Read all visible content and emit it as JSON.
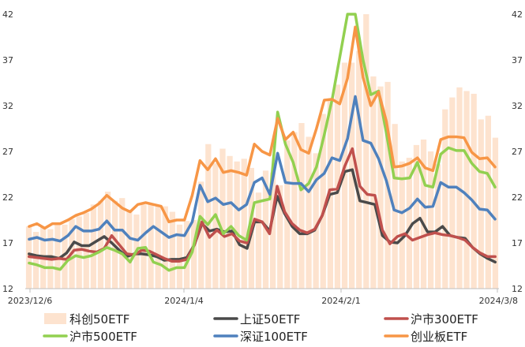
{
  "chart_data": {
    "type": "line",
    "y_ticks": [
      12,
      17,
      22,
      27,
      32,
      37,
      42
    ],
    "ylim": [
      12,
      42
    ],
    "x_tick_labels": [
      "2023/12/6",
      "2024/1/4",
      "2024/2/1",
      "2024/3/8"
    ],
    "grid": false,
    "legend_position": "bottom",
    "bar_series": {
      "name": "科创50ETF",
      "color": "#fde3cf",
      "values": [
        18.8,
        18.2,
        18.8,
        18.5,
        19.2,
        19.0,
        19.6,
        19.9,
        20.3,
        21.2,
        21.6,
        22.6,
        21.6,
        21.9,
        20.6,
        20.1,
        21.2,
        21.2,
        21.1,
        21.0,
        20.4,
        19.0,
        19.4,
        19.5,
        23.7,
        27.8,
        25.7,
        27.3,
        26.5,
        25.9,
        26.2,
        25.2,
        22.5,
        24.9,
        24.7,
        23.3,
        28.2,
        29.1,
        30.1,
        28.6,
        26.8,
        31.1,
        32.6,
        34.3,
        36.7,
        36.7,
        38.0,
        42.0,
        35.2,
        34.1,
        34.6,
        30.0,
        25.9,
        26.3,
        27.7,
        28.3,
        27.0,
        25.6,
        31.6,
        32.9,
        34.0,
        33.6,
        33.3,
        30.5,
        30.9,
        28.5
      ]
    },
    "series": [
      {
        "name": "上证50ETF",
        "color": "#4a4a4a",
        "values": [
          15.8,
          15.6,
          15.5,
          15.5,
          15.3,
          15.9,
          17.1,
          16.7,
          16.7,
          17.2,
          17.7,
          17.0,
          16.2,
          15.5,
          15.8,
          15.8,
          15.7,
          15.5,
          15.1,
          15.2,
          15.2,
          15.4,
          16.8,
          19.1,
          18.3,
          18.5,
          18.2,
          18.3,
          16.8,
          16.4,
          19.3,
          19.3,
          18.3,
          22.1,
          20.2,
          18.8,
          18.0,
          18.0,
          18.4,
          20.0,
          22.3,
          22.5,
          24.8,
          25.0,
          21.6,
          21.4,
          21.2,
          17.8,
          17.1,
          17.0,
          17.8,
          19.1,
          19.7,
          18.2,
          18.2,
          18.8,
          17.8,
          17.6,
          17.5,
          16.5,
          15.8,
          15.3,
          14.9
        ]
      },
      {
        "name": "沪市300ETF",
        "color": "#c0504d",
        "values": [
          15.5,
          15.4,
          15.3,
          15.2,
          15.3,
          15.2,
          16.2,
          16.3,
          16.1,
          16.0,
          16.4,
          17.8,
          16.8,
          15.8,
          15.7,
          16.2,
          16.1,
          15.7,
          15.3,
          15.0,
          15.0,
          15.2,
          16.8,
          19.3,
          17.6,
          18.4,
          17.7,
          18.0,
          17.2,
          17.0,
          19.6,
          19.3,
          18.0,
          23.2,
          20.4,
          19.1,
          18.4,
          18.1,
          18.5,
          20.0,
          22.8,
          22.9,
          25.4,
          27.3,
          23.2,
          22.3,
          22.2,
          18.4,
          16.9,
          17.7,
          18.0,
          17.3,
          17.6,
          17.9,
          18.1,
          17.9,
          17.8,
          17.6,
          17.3,
          16.5,
          15.9,
          15.5,
          15.5
        ]
      },
      {
        "name": "沪市500ETF",
        "color": "#92d050",
        "values": [
          14.8,
          14.6,
          14.3,
          14.3,
          14.1,
          15.1,
          15.6,
          15.4,
          15.6,
          16.0,
          16.5,
          16.2,
          15.8,
          14.9,
          16.4,
          16.5,
          14.9,
          14.6,
          14.0,
          14.3,
          14.3,
          16.0,
          19.9,
          19.0,
          20.1,
          18.0,
          18.8,
          17.8,
          17.3,
          21.4,
          21.6,
          21.8,
          31.3,
          27.8,
          25.8,
          22.8,
          23.5,
          25.3,
          28.8,
          32.6,
          37.3,
          42.0,
          42.0,
          37.0,
          33.2,
          33.6,
          29.0,
          24.1,
          24.0,
          24.1,
          25.8,
          23.3,
          23.1,
          26.7,
          27.4,
          27.1,
          27.1,
          25.7,
          24.8,
          24.6,
          23.1
        ]
      },
      {
        "name": "深证100ETF",
        "color": "#4f81bd",
        "values": [
          17.4,
          17.6,
          17.3,
          17.4,
          17.2,
          17.8,
          18.8,
          18.3,
          18.3,
          18.5,
          19.4,
          18.4,
          18.4,
          17.5,
          17.3,
          18.1,
          18.8,
          18.2,
          17.6,
          17.9,
          17.8,
          19.3,
          23.3,
          21.5,
          21.9,
          21.2,
          21.4,
          20.6,
          21.2,
          23.6,
          24.1,
          22.3,
          26.8,
          23.6,
          23.5,
          23.5,
          22.6,
          23.9,
          24.6,
          26.3,
          26.0,
          28.4,
          33.0,
          28.2,
          27.9,
          26.2,
          23.8,
          20.6,
          20.3,
          20.8,
          21.8,
          20.9,
          21.0,
          23.6,
          23.1,
          23.1,
          22.5,
          21.7,
          20.7,
          20.6,
          19.6
        ]
      },
      {
        "name": "创业板ETF",
        "color": "#f79646",
        "values": [
          18.8,
          19.1,
          18.6,
          19.1,
          19.1,
          19.5,
          20.0,
          20.3,
          20.7,
          21.3,
          22.2,
          21.5,
          20.8,
          20.4,
          21.2,
          21.4,
          21.2,
          21.0,
          19.3,
          19.5,
          19.5,
          22.2,
          26.0,
          25.0,
          26.2,
          24.7,
          24.9,
          24.7,
          24.4,
          27.8,
          27.0,
          26.6,
          30.6,
          28.3,
          29.1,
          27.2,
          26.8,
          29.5,
          32.6,
          32.7,
          32.2,
          35.0,
          40.6,
          35.1,
          32.0,
          33.5,
          30.3,
          25.3,
          25.4,
          25.7,
          26.3,
          25.2,
          24.9,
          28.3,
          28.6,
          28.6,
          28.5,
          26.9,
          26.2,
          26.3,
          25.3
        ]
      }
    ]
  }
}
